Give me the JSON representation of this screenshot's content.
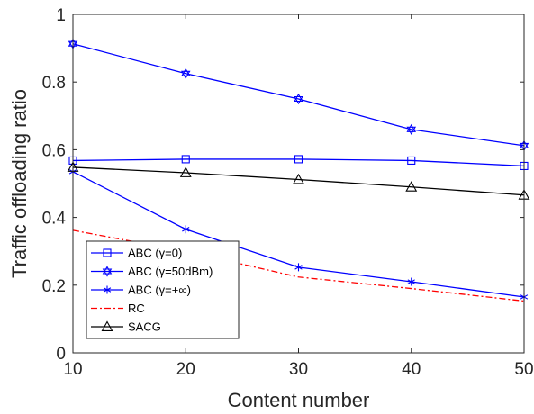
{
  "chart_data": {
    "type": "line",
    "title": "",
    "xlabel": "Content number",
    "ylabel": "Traffic offloading ratio",
    "xlim": [
      10,
      50
    ],
    "ylim": [
      0,
      1
    ],
    "xticks": [
      10,
      20,
      30,
      40,
      50
    ],
    "yticks": [
      0,
      0.2,
      0.4,
      0.6,
      0.8,
      1
    ],
    "ytick_labels": [
      "0",
      "0.2",
      "0.4",
      "0.6",
      "0.8",
      "1"
    ],
    "grid": false,
    "legend_position": "bottom-left",
    "x": [
      10,
      20,
      30,
      40,
      50
    ],
    "series": [
      {
        "name": "ABC (γ=0)",
        "values": [
          0.568,
          0.572,
          0.572,
          0.568,
          0.552
        ],
        "color": "#0000ff",
        "line_style": "solid",
        "marker": "square"
      },
      {
        "name": "ABC (γ=50dBm)",
        "values": [
          0.913,
          0.825,
          0.75,
          0.66,
          0.612
        ],
        "color": "#0000ff",
        "line_style": "solid",
        "marker": "hexagram"
      },
      {
        "name": "ABC (γ=+∞)",
        "values": [
          0.535,
          0.365,
          0.253,
          0.21,
          0.165
        ],
        "color": "#0000ff",
        "line_style": "solid",
        "marker": "asterisk"
      },
      {
        "name": "RC",
        "values": [
          0.362,
          0.3,
          0.224,
          0.19,
          0.153
        ],
        "color": "#ff0000",
        "line_style": "dashdot",
        "marker": "none"
      },
      {
        "name": "SACG",
        "values": [
          0.548,
          0.532,
          0.512,
          0.49,
          0.466
        ],
        "color": "#000000",
        "line_style": "solid",
        "marker": "triangle"
      }
    ]
  }
}
